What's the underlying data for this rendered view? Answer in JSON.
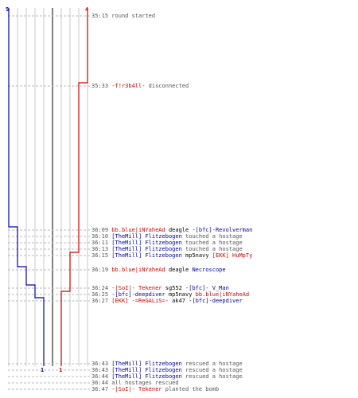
{
  "colors": {
    "team_blue": "#0000aa",
    "team_red": "#cc0000",
    "grid": "#c8c8c8",
    "divider": "#808080",
    "dash": "#bbbbbb",
    "time": "#555555"
  },
  "counts": {
    "blue_start": "5",
    "red_start": "4",
    "blue_end": "1",
    "red_end": "1"
  },
  "events": [
    {
      "time": "35:15",
      "parts": [
        {
          "t": "round started",
          "c": "plain"
        }
      ]
    },
    {
      "time": "35:33",
      "parts": [
        {
          "t": "-f!r3b4ll-",
          "c": "red"
        },
        {
          "t": " disconnected",
          "c": "plain"
        }
      ]
    },
    {
      "time": "36:09",
      "parts": [
        {
          "t": "bb.blue|iNYaheAd",
          "c": "red"
        },
        {
          "t": " deagle ",
          "c": "black"
        },
        {
          "t": "-[bfc]-Revolverman",
          "c": "blue"
        }
      ]
    },
    {
      "time": "36:10",
      "parts": [
        {
          "t": "[TheMill] Flitzebogen",
          "c": "blue"
        },
        {
          "t": " touched a hostage",
          "c": "plain"
        }
      ]
    },
    {
      "time": "36:11",
      "parts": [
        {
          "t": "[TheMill] Flitzebogen",
          "c": "blue"
        },
        {
          "t": " touched a hostage",
          "c": "plain"
        }
      ]
    },
    {
      "time": "36:13",
      "parts": [
        {
          "t": "[TheMill] Flitzebogen",
          "c": "blue"
        },
        {
          "t": " touched a hostage",
          "c": "plain"
        }
      ]
    },
    {
      "time": "36:15",
      "parts": [
        {
          "t": "[TheMill] Flitzebogen",
          "c": "blue"
        },
        {
          "t": " mp5navy ",
          "c": "black"
        },
        {
          "t": "[EKK] HuMpTy",
          "c": "red"
        }
      ]
    },
    {
      "time": "36:19",
      "parts": [
        {
          "t": "bb.blue|iNYaheAd",
          "c": "red"
        },
        {
          "t": " deagle ",
          "c": "black"
        },
        {
          "t": "Necroscope",
          "c": "blue"
        }
      ]
    },
    {
      "time": "36:24",
      "parts": [
        {
          "t": "-|SoI|- Tekener",
          "c": "red"
        },
        {
          "t": " sg552 ",
          "c": "black"
        },
        {
          "t": "-[bfc]- V_Man",
          "c": "blue"
        }
      ]
    },
    {
      "time": "36:25",
      "parts": [
        {
          "t": "-[bfc]-deepdiver",
          "c": "blue"
        },
        {
          "t": " mp5navy ",
          "c": "black"
        },
        {
          "t": "bb.blue|iNYaheAd",
          "c": "red"
        }
      ]
    },
    {
      "time": "36:27",
      "parts": [
        {
          "t": "[EKK] -=ReGALiS=-",
          "c": "red"
        },
        {
          "t": " ak47 ",
          "c": "black"
        },
        {
          "t": "-[bfc]-deepdiver",
          "c": "blue"
        }
      ]
    },
    {
      "time": "36:43",
      "parts": [
        {
          "t": "[TheMill] Flitzebogen",
          "c": "blue"
        },
        {
          "t": " rescued a hostage",
          "c": "plain"
        }
      ]
    },
    {
      "time": "36:43",
      "parts": [
        {
          "t": "[TheMill] Flitzebogen",
          "c": "blue"
        },
        {
          "t": " rescued a hostage",
          "c": "plain"
        }
      ]
    },
    {
      "time": "36:44",
      "parts": [
        {
          "t": "[TheMill] Flitzebogen",
          "c": "blue"
        },
        {
          "t": " rescued a hostage",
          "c": "plain"
        }
      ]
    },
    {
      "time": "36:44",
      "parts": [
        {
          "t": "all hostages rescued",
          "c": "plain"
        }
      ]
    },
    {
      "time": "36:47",
      "parts": [
        {
          "t": "-|SoI|- Tekener",
          "c": "red"
        },
        {
          "t": " planted the bomb",
          "c": "plain"
        }
      ]
    }
  ]
}
